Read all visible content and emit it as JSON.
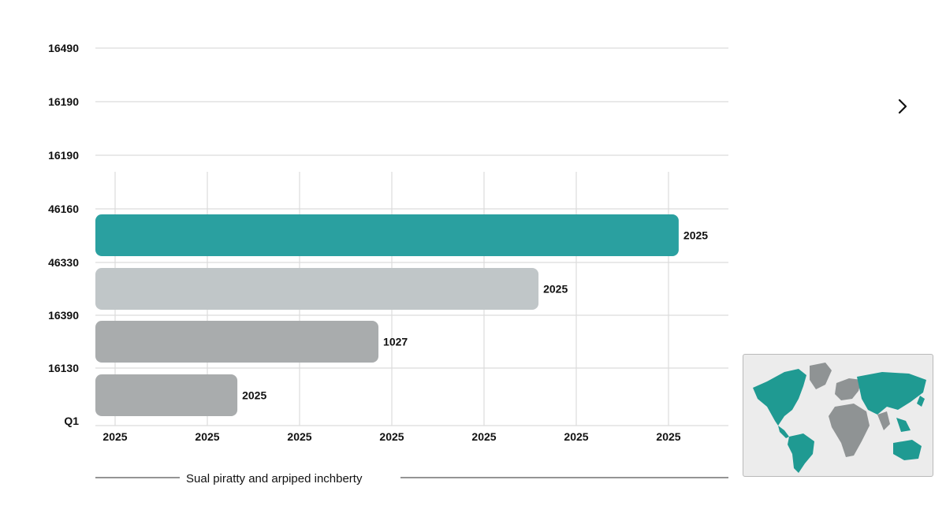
{
  "colors": {
    "accent": "#2aa0a0",
    "light_gray": "#c0c6c8",
    "mid_gray": "#a9acad",
    "gridline": "#dcdcdc",
    "map_teal": "#1f9a92",
    "map_gray": "#8f9394"
  },
  "icons": {
    "next": "chevron-right-icon",
    "map": "world-map-icon"
  },
  "chart_data": {
    "type": "bar",
    "orientation": "horizontal",
    "title": "",
    "caption": "Sual piratty and arpiped inchberty",
    "y_tick_labels": [
      "16490",
      "16190",
      "16190",
      "46160",
      "46330",
      "16390",
      "16130",
      "Q1"
    ],
    "x_tick_labels": [
      "2025",
      "2025",
      "2025",
      "2025",
      "2025",
      "2025",
      "2025"
    ],
    "xlim": [
      0,
      7
    ],
    "grid": true,
    "legend": "none",
    "bars": [
      {
        "value": 6.45,
        "label": "2025",
        "color": "#2aa0a0"
      },
      {
        "value": 4.9,
        "label": "2025",
        "color": "#c0c6c8"
      },
      {
        "value": 3.13,
        "label": "1027",
        "color": "#a9acad"
      },
      {
        "value": 1.57,
        "label": "2025",
        "color": "#a9acad"
      }
    ]
  }
}
